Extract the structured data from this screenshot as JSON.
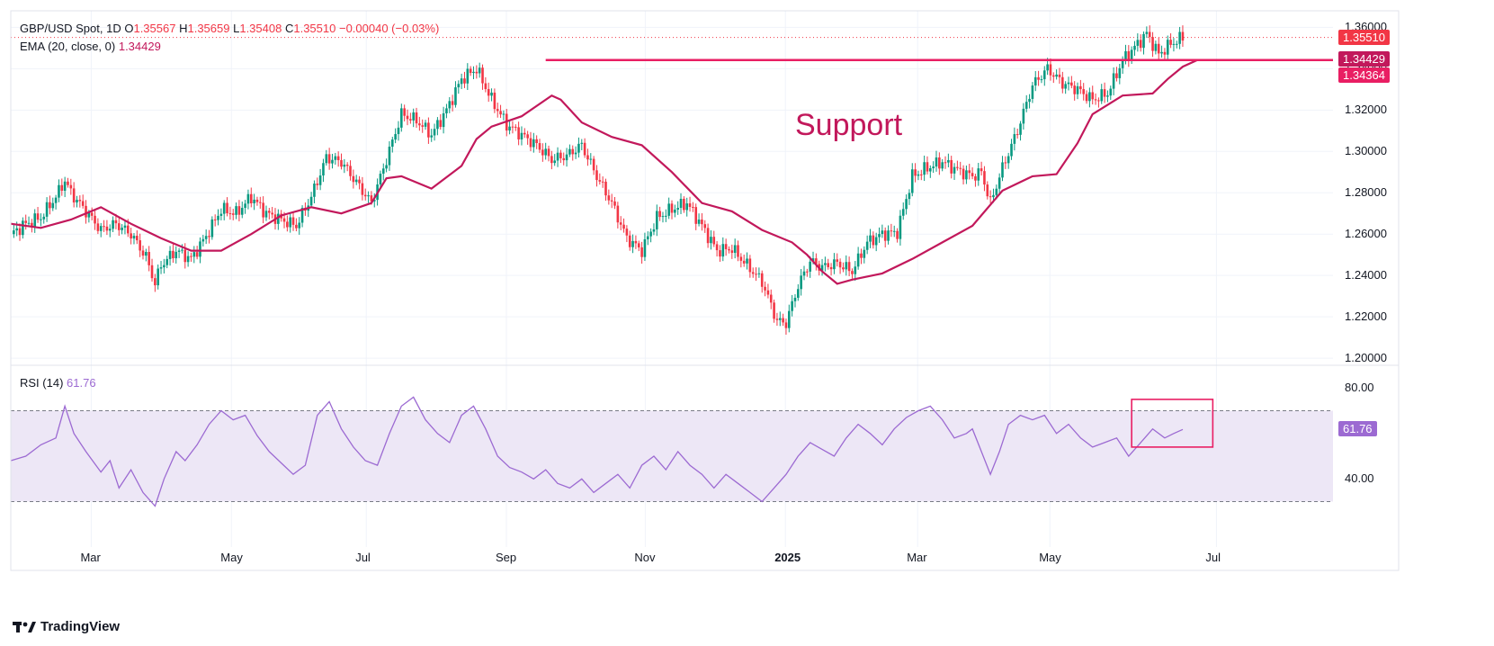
{
  "header": {
    "symbol": "GBP/USD Spot, 1D",
    "open_label": "O",
    "open": "1.35567",
    "high_label": "H",
    "high": "1.35659",
    "low_label": "L",
    "low": "1.35408",
    "close_label": "C",
    "close": "1.35510",
    "change": "−0.00040 (−0.03%)",
    "ema_label": "EMA (20, close, 0)",
    "ema_value": "1.34429",
    "rsi_label": "RSI (14)",
    "rsi_value": "61.76"
  },
  "brand": "TradingView",
  "colors": {
    "up": "#089981",
    "down": "#f23645",
    "ema": "#c2185b",
    "support": "#e91e63",
    "rsi": "#9c6ad2",
    "rsi_band": "#ede7f6"
  },
  "chart_data": {
    "type": "candlestick",
    "annotations": [
      {
        "text": "Support",
        "type": "horizontal-line",
        "y": 1.3442
      },
      {
        "type": "box",
        "panel": "rsi"
      }
    ],
    "price_axis": {
      "ticks": [
        "1.36000",
        "1.34000",
        "1.32000",
        "1.30000",
        "1.28000",
        "1.26000",
        "1.24000",
        "1.22000",
        "1.20000"
      ],
      "ylim": [
        1.197,
        1.368
      ]
    },
    "price_tags": [
      {
        "value": "1.35510",
        "color": "#f23645"
      },
      {
        "value": "1.34429",
        "color": "#c2185b"
      },
      {
        "value": "1.34364",
        "color": "#e91e63"
      }
    ],
    "x_axis": {
      "ticks": [
        "Mar",
        "May",
        "Jul",
        "Sep",
        "Nov",
        "2025",
        "Mar",
        "May",
        "Jul"
      ]
    },
    "ema_points": [
      [
        0,
        1.265
      ],
      [
        10,
        1.263
      ],
      [
        20,
        1.267
      ],
      [
        30,
        1.273
      ],
      [
        40,
        1.265
      ],
      [
        50,
        1.258
      ],
      [
        60,
        1.252
      ],
      [
        70,
        1.252
      ],
      [
        80,
        1.26
      ],
      [
        90,
        1.269
      ],
      [
        100,
        1.273
      ],
      [
        110,
        1.27
      ],
      [
        120,
        1.275
      ],
      [
        125,
        1.287
      ],
      [
        130,
        1.288
      ],
      [
        140,
        1.282
      ],
      [
        150,
        1.293
      ],
      [
        155,
        1.306
      ],
      [
        160,
        1.312
      ],
      [
        170,
        1.317
      ],
      [
        180,
        1.327
      ],
      [
        183,
        1.325
      ],
      [
        190,
        1.314
      ],
      [
        200,
        1.307
      ],
      [
        210,
        1.303
      ],
      [
        220,
        1.29
      ],
      [
        230,
        1.275
      ],
      [
        240,
        1.271
      ],
      [
        250,
        1.262
      ],
      [
        260,
        1.256
      ],
      [
        265,
        1.25
      ],
      [
        270,
        1.242
      ],
      [
        275,
        1.236
      ],
      [
        280,
        1.238
      ],
      [
        290,
        1.241
      ],
      [
        300,
        1.248
      ],
      [
        310,
        1.256
      ],
      [
        320,
        1.264
      ],
      [
        330,
        1.281
      ],
      [
        340,
        1.288
      ],
      [
        348,
        1.289
      ],
      [
        355,
        1.304
      ],
      [
        360,
        1.318
      ],
      [
        370,
        1.327
      ],
      [
        380,
        1.328
      ],
      [
        385,
        1.335
      ],
      [
        390,
        1.341
      ],
      [
        395,
        1.3443
      ]
    ],
    "candles_note": "approx. daily closes",
    "closes": [
      [
        0,
        1.26
      ],
      [
        5,
        1.265
      ],
      [
        10,
        1.268
      ],
      [
        15,
        1.278
      ],
      [
        18,
        1.286
      ],
      [
        20,
        1.28
      ],
      [
        25,
        1.271
      ],
      [
        30,
        1.262
      ],
      [
        35,
        1.265
      ],
      [
        40,
        1.26
      ],
      [
        45,
        1.249
      ],
      [
        48,
        1.236
      ],
      [
        50,
        1.245
      ],
      [
        55,
        1.252
      ],
      [
        60,
        1.248
      ],
      [
        65,
        1.259
      ],
      [
        70,
        1.272
      ],
      [
        75,
        1.27
      ],
      [
        80,
        1.278
      ],
      [
        85,
        1.27
      ],
      [
        90,
        1.267
      ],
      [
        95,
        1.264
      ],
      [
        100,
        1.278
      ],
      [
        105,
        1.297
      ],
      [
        110,
        1.295
      ],
      [
        115,
        1.285
      ],
      [
        120,
        1.275
      ],
      [
        125,
        1.296
      ],
      [
        130,
        1.318
      ],
      [
        135,
        1.315
      ],
      [
        140,
        1.308
      ],
      [
        145,
        1.32
      ],
      [
        150,
        1.335
      ],
      [
        155,
        1.34
      ],
      [
        160,
        1.325
      ],
      [
        165,
        1.313
      ],
      [
        170,
        1.308
      ],
      [
        175,
        1.303
      ],
      [
        180,
        1.296
      ],
      [
        185,
        1.298
      ],
      [
        190,
        1.303
      ],
      [
        195,
        1.288
      ],
      [
        200,
        1.275
      ],
      [
        205,
        1.258
      ],
      [
        210,
        1.252
      ],
      [
        215,
        1.268
      ],
      [
        220,
        1.272
      ],
      [
        225,
        1.275
      ],
      [
        230,
        1.264
      ],
      [
        235,
        1.252
      ],
      [
        240,
        1.253
      ],
      [
        245,
        1.245
      ],
      [
        250,
        1.237
      ],
      [
        255,
        1.218
      ],
      [
        258,
        1.217
      ],
      [
        262,
        1.235
      ],
      [
        266,
        1.247
      ],
      [
        270,
        1.244
      ],
      [
        275,
        1.246
      ],
      [
        280,
        1.242
      ],
      [
        285,
        1.256
      ],
      [
        290,
        1.26
      ],
      [
        295,
        1.261
      ],
      [
        300,
        1.288
      ],
      [
        305,
        1.292
      ],
      [
        310,
        1.295
      ],
      [
        315,
        1.291
      ],
      [
        320,
        1.288
      ],
      [
        323,
        1.29
      ],
      [
        326,
        1.275
      ],
      [
        330,
        1.292
      ],
      [
        335,
        1.31
      ],
      [
        340,
        1.332
      ],
      [
        345,
        1.34
      ],
      [
        350,
        1.333
      ],
      [
        355,
        1.33
      ],
      [
        360,
        1.325
      ],
      [
        365,
        1.328
      ],
      [
        370,
        1.344
      ],
      [
        375,
        1.352
      ],
      [
        378,
        1.357
      ],
      [
        382,
        1.347
      ],
      [
        386,
        1.352
      ],
      [
        390,
        1.3551
      ]
    ],
    "rsi": {
      "axis_ticks": [
        "80.00",
        "40.00"
      ],
      "levels": [
        70,
        30
      ],
      "ylim": [
        10,
        90
      ],
      "values": [
        [
          0,
          48
        ],
        [
          5,
          50
        ],
        [
          10,
          55
        ],
        [
          15,
          58
        ],
        [
          18,
          72
        ],
        [
          21,
          60
        ],
        [
          25,
          52
        ],
        [
          30,
          43
        ],
        [
          33,
          48
        ],
        [
          36,
          36
        ],
        [
          40,
          44
        ],
        [
          44,
          34
        ],
        [
          48,
          28
        ],
        [
          51,
          40
        ],
        [
          55,
          52
        ],
        [
          58,
          48
        ],
        [
          62,
          55
        ],
        [
          66,
          64
        ],
        [
          70,
          70
        ],
        [
          74,
          66
        ],
        [
          78,
          68
        ],
        [
          82,
          59
        ],
        [
          86,
          52
        ],
        [
          90,
          47
        ],
        [
          94,
          42
        ],
        [
          98,
          46
        ],
        [
          102,
          68
        ],
        [
          106,
          74
        ],
        [
          110,
          62
        ],
        [
          114,
          54
        ],
        [
          118,
          48
        ],
        [
          122,
          46
        ],
        [
          126,
          60
        ],
        [
          130,
          72
        ],
        [
          134,
          76
        ],
        [
          138,
          66
        ],
        [
          142,
          60
        ],
        [
          146,
          56
        ],
        [
          150,
          68
        ],
        [
          154,
          72
        ],
        [
          158,
          62
        ],
        [
          162,
          50
        ],
        [
          166,
          45
        ],
        [
          170,
          43
        ],
        [
          174,
          40
        ],
        [
          178,
          44
        ],
        [
          182,
          38
        ],
        [
          186,
          36
        ],
        [
          190,
          40
        ],
        [
          194,
          34
        ],
        [
          198,
          38
        ],
        [
          202,
          42
        ],
        [
          206,
          36
        ],
        [
          210,
          46
        ],
        [
          214,
          50
        ],
        [
          218,
          44
        ],
        [
          222,
          52
        ],
        [
          226,
          46
        ],
        [
          230,
          42
        ],
        [
          234,
          36
        ],
        [
          238,
          42
        ],
        [
          242,
          38
        ],
        [
          246,
          34
        ],
        [
          250,
          30
        ],
        [
          254,
          36
        ],
        [
          258,
          42
        ],
        [
          262,
          50
        ],
        [
          266,
          56
        ],
        [
          270,
          53
        ],
        [
          274,
          50
        ],
        [
          278,
          58
        ],
        [
          282,
          64
        ],
        [
          286,
          60
        ],
        [
          290,
          55
        ],
        [
          294,
          62
        ],
        [
          298,
          67
        ],
        [
          302,
          70
        ],
        [
          306,
          72
        ],
        [
          310,
          66
        ],
        [
          314,
          58
        ],
        [
          318,
          60
        ],
        [
          320,
          62
        ],
        [
          323,
          52
        ],
        [
          326,
          42
        ],
        [
          329,
          52
        ],
        [
          332,
          64
        ],
        [
          336,
          68
        ],
        [
          340,
          66
        ],
        [
          344,
          68
        ],
        [
          348,
          60
        ],
        [
          352,
          64
        ],
        [
          356,
          58
        ],
        [
          360,
          54
        ],
        [
          364,
          56
        ],
        [
          368,
          58
        ],
        [
          372,
          50
        ],
        [
          376,
          56
        ],
        [
          380,
          62
        ],
        [
          384,
          58
        ],
        [
          387,
          60
        ],
        [
          390,
          61.76
        ]
      ]
    }
  }
}
